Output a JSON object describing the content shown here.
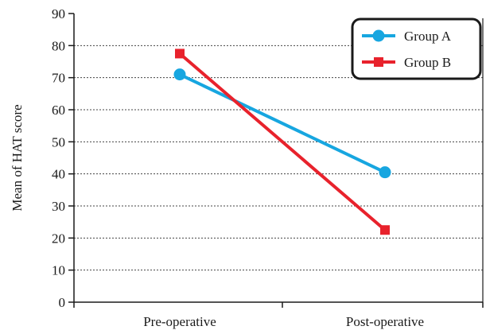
{
  "chart_data": {
    "type": "line",
    "categories": [
      "Pre-operative",
      "Post-operative"
    ],
    "series": [
      {
        "name": "Group A",
        "values": [
          71,
          40.5
        ],
        "color": "#17a6e0",
        "marker": "circle"
      },
      {
        "name": "Group B",
        "values": [
          77.5,
          22.5
        ],
        "color": "#e8222c",
        "marker": "square"
      }
    ],
    "ylabel": "Mean of HAT score",
    "xlabel": "",
    "ylim": [
      0,
      90
    ],
    "yticks": [
      0,
      10,
      20,
      30,
      40,
      50,
      60,
      70,
      80,
      90
    ],
    "grid": "horizontal-dotted",
    "legend_position": "top-right"
  }
}
